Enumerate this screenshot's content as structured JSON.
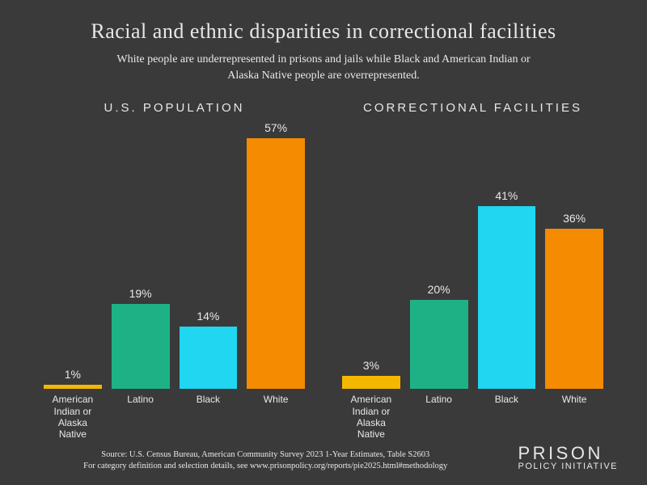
{
  "title": "Racial and ethnic disparities in correctional facilities",
  "subtitle": "White people are underrepresented in prisons and jails while Black and American Indian or Alaska Native people are overrepresented.",
  "ylim_max": 60,
  "background_color": "#3a3a3a",
  "text_color": "#e8e8e8",
  "categories": [
    "American Indian or Alaska Native",
    "Latino",
    "Black",
    "White"
  ],
  "colors": {
    "American Indian or Alaska Native": "#f5b800",
    "Latino": "#1fb186",
    "Black": "#20d6f0",
    "White": "#f58b00"
  },
  "charts": [
    {
      "title": "U.S. POPULATION",
      "values": [
        1,
        19,
        14,
        57
      ]
    },
    {
      "title": "CORRECTIONAL FACILITIES",
      "values": [
        3,
        20,
        41,
        36
      ]
    }
  ],
  "source_line1": "Source: U.S. Census Bureau, American Community Survey 2023 1-Year Estimates, Table S2603",
  "source_line2": "For category definition and selection details, see www.prisonpolicy.org/reports/pie2025.html#methodology",
  "logo_top": "PRISON",
  "logo_bottom": "POLICY INITIATIVE",
  "title_fontsize": 26,
  "subtitle_fontsize": 14,
  "chart_title_fontsize": 15,
  "value_fontsize": 14,
  "axis_label_fontsize": 12,
  "source_fontsize": 10.5
}
